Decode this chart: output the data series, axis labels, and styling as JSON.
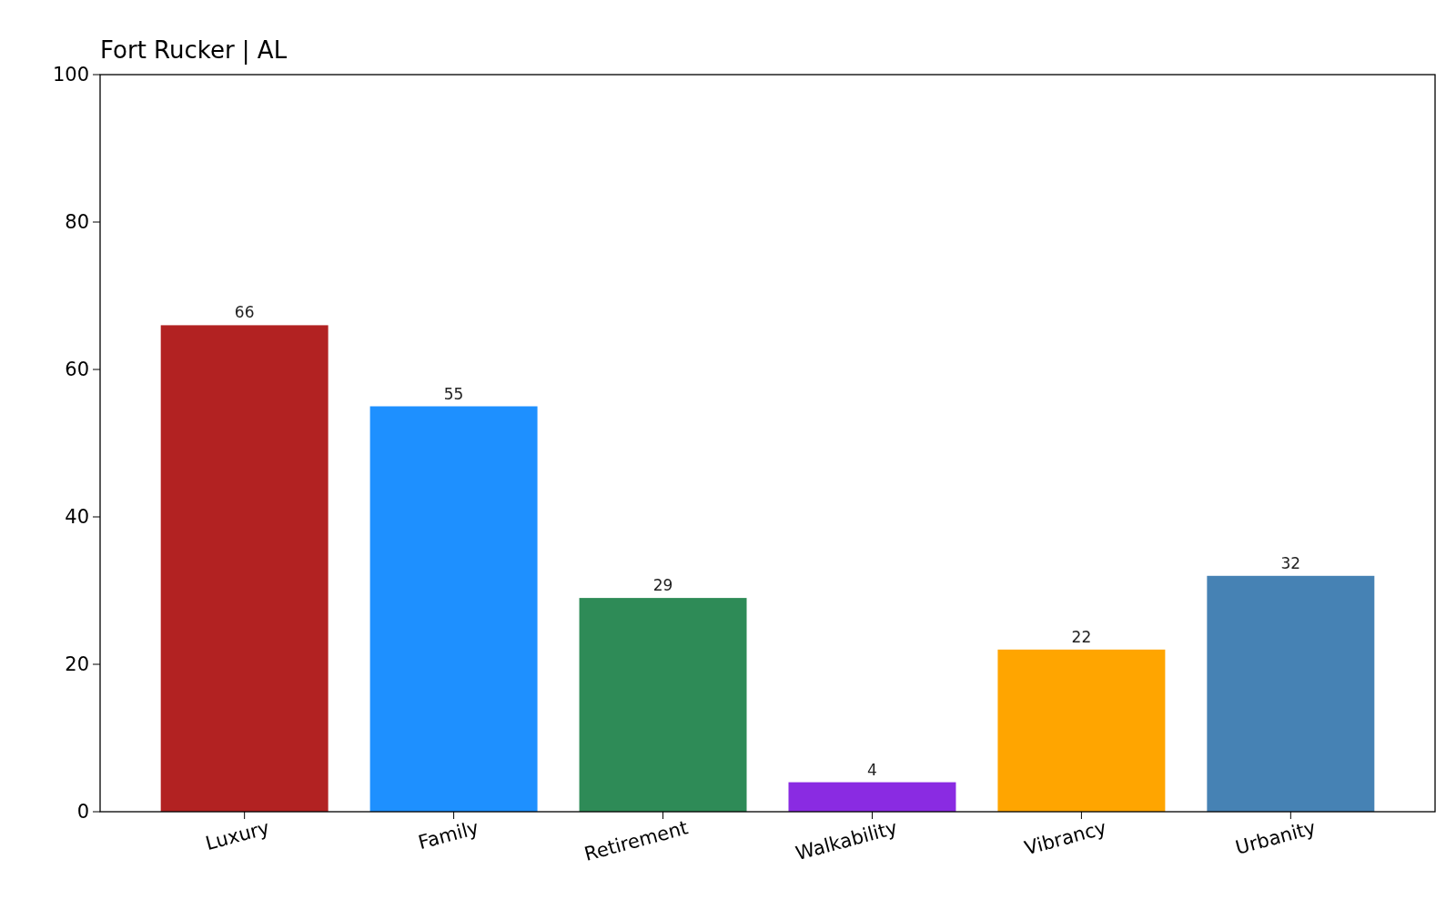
{
  "chart_data": {
    "type": "bar",
    "title": "Fort Rucker | AL",
    "categories": [
      "Luxury",
      "Family",
      "Retirement",
      "Walkability",
      "Vibrancy",
      "Urbanity"
    ],
    "values": [
      66,
      55,
      29,
      4,
      22,
      32
    ],
    "colors": [
      "#b22222",
      "#1e90ff",
      "#2e8b57",
      "#8a2be2",
      "#ffa500",
      "#4682b4"
    ],
    "ylim": [
      0,
      100
    ],
    "yticks": [
      0,
      20,
      40,
      60,
      80,
      100
    ],
    "data_labels": true
  }
}
